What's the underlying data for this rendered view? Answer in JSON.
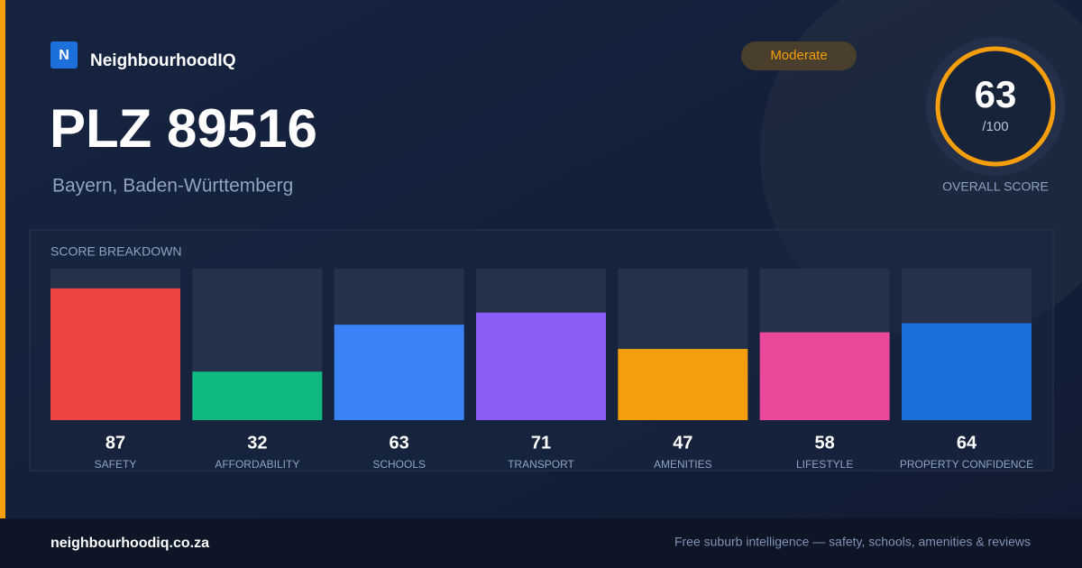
{
  "header": {
    "logo_letter": "N",
    "brand": "NeighbourhoodIQ",
    "title": "PLZ 89516",
    "subtitle": "Bayern, Baden-Württemberg",
    "badge": "Moderate"
  },
  "score": {
    "value": 63,
    "max_label": "/100",
    "caption": "OVERALL SCORE"
  },
  "chart_data": {
    "type": "bar",
    "title": "SCORE BREAKDOWN",
    "categories": [
      "SAFETY",
      "AFFORDABILITY",
      "SCHOOLS",
      "TRANSPORT",
      "AMENITIES",
      "LIFESTYLE",
      "PROPERTY CONFIDENCE"
    ],
    "values": [
      87,
      32,
      63,
      71,
      47,
      58,
      64
    ],
    "colors": [
      "#ef4444",
      "#10b981",
      "#3b82f6",
      "#8b5cf6",
      "#f59e0b",
      "#ec4899",
      "#1d6fdb"
    ],
    "ylim": [
      0,
      100
    ]
  },
  "footer": {
    "site": "neighbourhoodiq.co.za",
    "tagline": "Free suburb intelligence — safety, schools, amenities & reviews"
  }
}
